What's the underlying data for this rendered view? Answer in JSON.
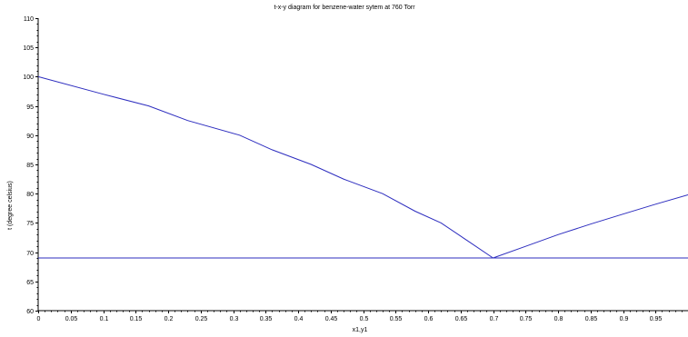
{
  "chart_data": {
    "type": "line",
    "title": "t-x-y diagram for benzene-water sytem at 760 Torr",
    "xlabel": "x1,y1",
    "ylabel": "t (degree celsius)",
    "xlim": [
      0,
      1.0
    ],
    "ylim": [
      60,
      110
    ],
    "grid": false,
    "x_ticks": [
      0,
      0.05,
      0.1,
      0.15,
      0.2,
      0.25,
      0.3,
      0.35,
      0.4,
      0.45,
      0.5,
      0.55,
      0.6,
      0.65,
      0.7,
      0.75,
      0.8,
      0.85,
      0.9,
      0.95
    ],
    "y_ticks": [
      60,
      65,
      70,
      75,
      80,
      85,
      90,
      95,
      100,
      105,
      110
    ],
    "series": [
      {
        "color": "#2d2dbf",
        "x": [
          0,
          0.1,
          0.17,
          0.23,
          0.31,
          0.36,
          0.42,
          0.47,
          0.53,
          0.58,
          0.62,
          0.66,
          0.7
        ],
        "y": [
          100,
          97,
          95,
          92.5,
          90,
          87.5,
          85,
          82.5,
          80,
          77,
          75,
          72,
          69
        ]
      },
      {
        "color": "#2d2dbf",
        "x": [
          0.7,
          0.75,
          0.8,
          0.85,
          0.9,
          0.95,
          1.0
        ],
        "y": [
          69,
          71,
          73,
          74.8,
          76.5,
          78.2,
          79.8
        ]
      },
      {
        "color": "#2d2dbf",
        "x": [
          0,
          1.0
        ],
        "y": [
          69,
          69
        ]
      }
    ]
  }
}
